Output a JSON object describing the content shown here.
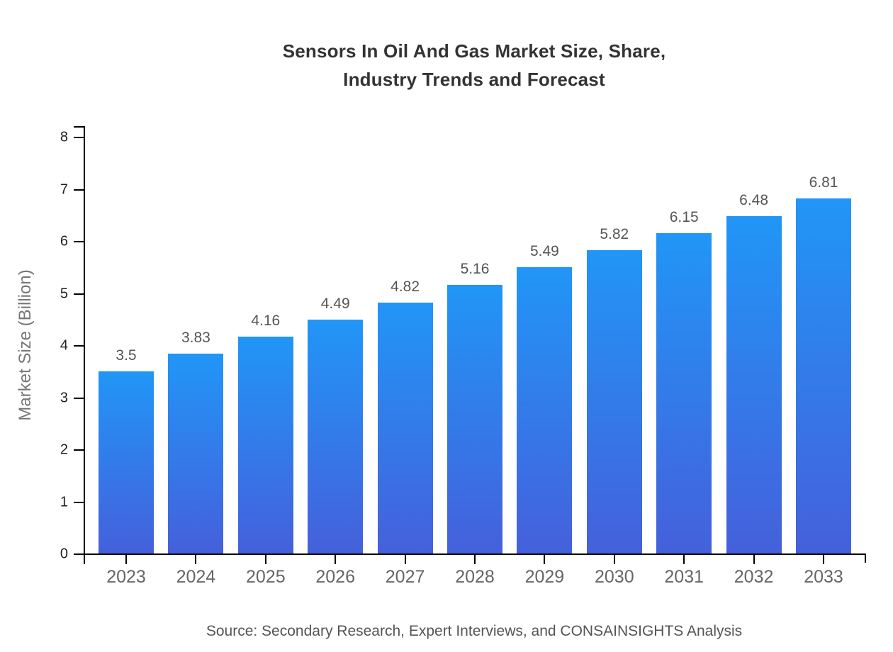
{
  "title": "Sensors In Oil And Gas Market Size, Share,\nIndustry Trends and Forecast",
  "source": "Source: Secondary Research, Expert Interviews, and CONSAINSIGHTS Analysis",
  "chart_data": {
    "type": "bar",
    "title": "Sensors In Oil And Gas Market Size, Share, Industry Trends and Forecast",
    "categories": [
      "2023",
      "2024",
      "2025",
      "2026",
      "2027",
      "2028",
      "2029",
      "2030",
      "2031",
      "2032",
      "2033"
    ],
    "values": [
      3.5,
      3.83,
      4.16,
      4.49,
      4.82,
      5.16,
      5.49,
      5.82,
      6.15,
      6.48,
      6.81
    ],
    "value_labels": [
      "3.5",
      "3.83",
      "4.16",
      "4.49",
      "4.82",
      "5.16",
      "5.49",
      "5.82",
      "6.15",
      "6.48",
      "6.81"
    ],
    "xlabel": "",
    "ylabel": "Market Size (Billion)",
    "ylim": [
      0,
      8
    ],
    "yticks": [
      0,
      1,
      2,
      3,
      4,
      5,
      6,
      7,
      8
    ],
    "grid": false,
    "legend": "none",
    "bar_color_top": "#2196f7",
    "bar_color_bottom": "#4560db"
  },
  "colors": {
    "background": "#ffffff",
    "axis": "#000000",
    "title_text": "#333333",
    "y_tick_text": "#222222",
    "x_tick_text": "#666666",
    "value_label_text": "#555555",
    "axis_label_text": "#777777",
    "source_text": "#555555"
  }
}
